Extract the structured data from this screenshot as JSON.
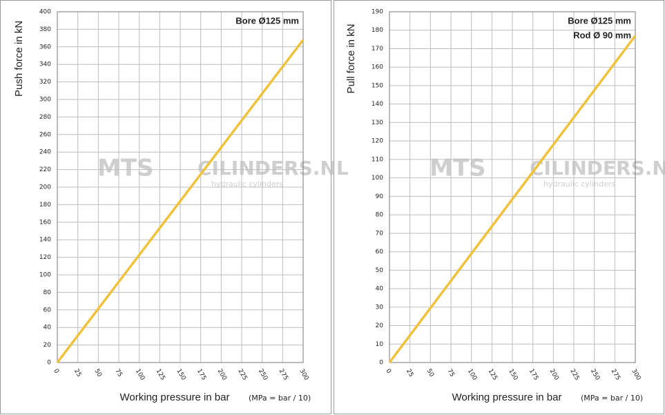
{
  "chart_data": [
    {
      "type": "line",
      "y_label": "Push force in kN",
      "x_label": "Working pressure in bar",
      "x_note": "(MPa = bar / 10)",
      "annotations": [
        "Bore Ø125 mm"
      ],
      "watermark": {
        "brand": "MTS",
        "site": "CILINDERS.NL",
        "tagline": "hydraulic cylinders"
      },
      "x": [
        0,
        300
      ],
      "series": [
        {
          "name": "Push force",
          "color": "#f0c23c",
          "values": [
            0,
            368
          ]
        }
      ],
      "xlim": [
        0,
        300
      ],
      "xticks": [
        0,
        25,
        50,
        75,
        100,
        125,
        150,
        175,
        200,
        225,
        250,
        275,
        300
      ],
      "ylim": [
        0,
        400
      ],
      "yticks": [
        0,
        20,
        40,
        60,
        80,
        100,
        120,
        140,
        160,
        180,
        200,
        220,
        240,
        260,
        280,
        300,
        320,
        340,
        360,
        380,
        400
      ],
      "grid": true
    },
    {
      "type": "line",
      "y_label": "Pull force in kN",
      "x_label": "Working pressure in bar",
      "x_note": "(MPa = bar / 10)",
      "annotations": [
        "Bore Ø125 mm",
        "Rod Ø  90 mm"
      ],
      "watermark": {
        "brand": "MTS",
        "site": "CILINDERS.NL",
        "tagline": "hydraulic cylinders"
      },
      "x": [
        0,
        300
      ],
      "series": [
        {
          "name": "Pull force",
          "color": "#f0c23c",
          "values": [
            0,
            177
          ]
        }
      ],
      "xlim": [
        0,
        300
      ],
      "xticks": [
        0,
        25,
        50,
        75,
        100,
        125,
        150,
        175,
        200,
        225,
        250,
        275,
        300
      ],
      "ylim": [
        0,
        190
      ],
      "yticks": [
        0,
        10,
        20,
        30,
        40,
        50,
        60,
        70,
        80,
        90,
        100,
        110,
        120,
        130,
        140,
        150,
        160,
        170,
        180,
        190
      ],
      "grid": true
    }
  ]
}
